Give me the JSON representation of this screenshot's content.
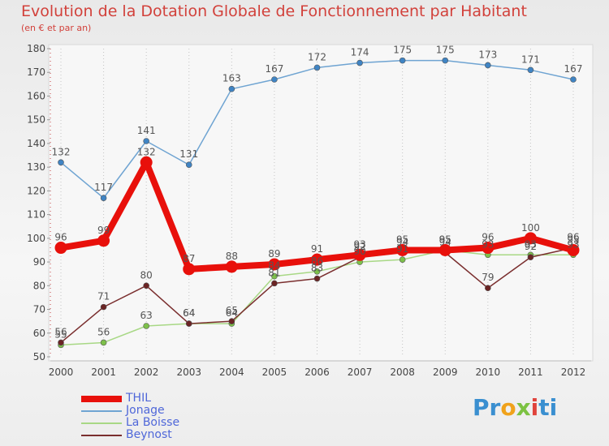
{
  "title": "Evolution de la Dotation Globale de Fonctionnement par Habitant",
  "subtitle": "(en € et par an)",
  "brand": {
    "name": "Proxiti",
    "parts": [
      "Pr",
      "o",
      "x",
      "i",
      "ti"
    ]
  },
  "chart_data": {
    "type": "line",
    "title": "Evolution de la Dotation Globale de Fonctionnement par Habitant",
    "subtitle": "(en € et par an)",
    "xlabel": "",
    "ylabel": "",
    "x": [
      "2000",
      "2001",
      "2002",
      "2003",
      "2004",
      "2005",
      "2006",
      "2007",
      "2008",
      "2009",
      "2010",
      "2011",
      "2012"
    ],
    "ylim": [
      50,
      180
    ],
    "yticks": [
      50,
      60,
      70,
      80,
      90,
      100,
      110,
      120,
      130,
      140,
      150,
      160,
      170,
      180
    ],
    "grid": "vertical",
    "legend_position": "bottom-left",
    "series": [
      {
        "name": "THIL",
        "color": "#e8100b",
        "emphasis": true,
        "values": [
          96,
          99,
          132,
          87,
          88,
          89,
          91,
          93,
          95,
          95,
          96,
          100,
          95
        ]
      },
      {
        "name": "Jonage",
        "color": "#6fa4d2",
        "marker": "#3f84c4",
        "values": [
          132,
          117,
          141,
          131,
          163,
          167,
          172,
          174,
          175,
          175,
          173,
          171,
          167
        ]
      },
      {
        "name": "La Boisse",
        "color": "#a8d885",
        "marker": "#7dc04a",
        "values": [
          55,
          56,
          63,
          64,
          64,
          84,
          86,
          90,
          91,
          95,
          93,
          93,
          93
        ]
      },
      {
        "name": "Beynost",
        "color": "#7a2e2e",
        "marker": "#6b2424",
        "values": [
          56,
          71,
          80,
          64,
          65,
          81,
          83,
          92,
          94,
          94,
          79,
          92,
          96
        ]
      }
    ]
  }
}
